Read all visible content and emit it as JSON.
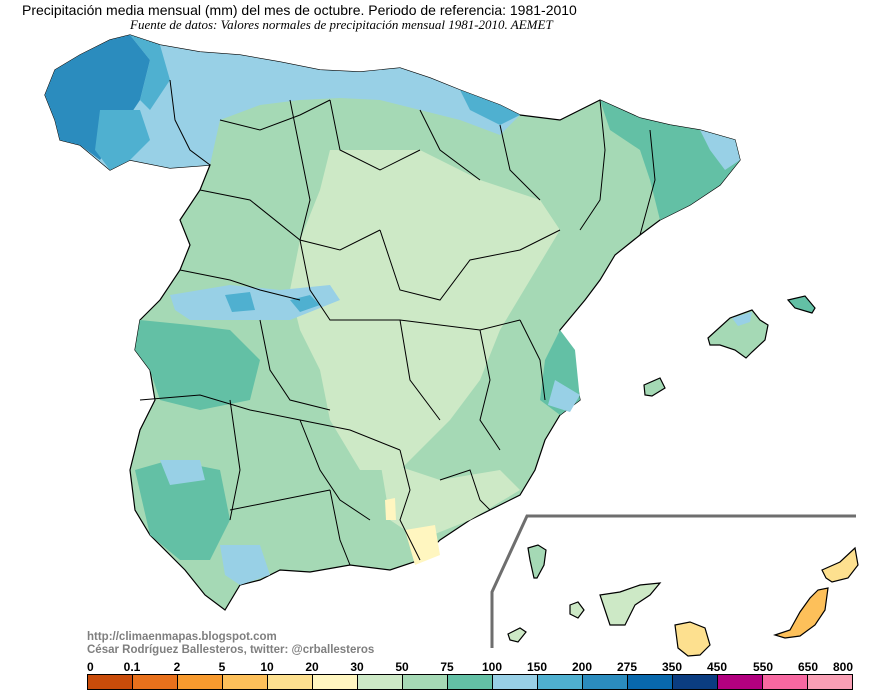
{
  "header": {
    "title": "Precipitación media mensual (mm) del mes de octubre. Periodo de referencia: 1981-2010",
    "subtitle": "Fuente de datos: Valores normales de precipitación mensual 1981-2010. AEMET"
  },
  "credits": {
    "url": "http://climaenmapas.blogspot.com",
    "author": "César Rodríguez Ballesteros, twitter: @crballesteros"
  },
  "map": {
    "region": "Spain (Peninsula, Balearic Islands, Canary Islands inset)",
    "month": "octubre",
    "variable": "Precipitación media mensual (mm)",
    "inset": "Islas Canarias"
  },
  "legend": {
    "labels": [
      "0",
      "0.1",
      "2",
      "5",
      "10",
      "20",
      "30",
      "50",
      "75",
      "100",
      "150",
      "200",
      "275",
      "350",
      "450",
      "550",
      "650",
      "800"
    ],
    "colors": [
      "#c94c0a",
      "#e8711c",
      "#f79a2e",
      "#fdc05a",
      "#fde08f",
      "#fff6c0",
      "#cde9c6",
      "#a5d9b5",
      "#63c0a5",
      "#98d0e6",
      "#4fb0d0",
      "#2b8cbe",
      "#0868ac",
      "#0b3d81",
      "#b2007f",
      "#f768a1",
      "#fa9fb5"
    ]
  }
}
